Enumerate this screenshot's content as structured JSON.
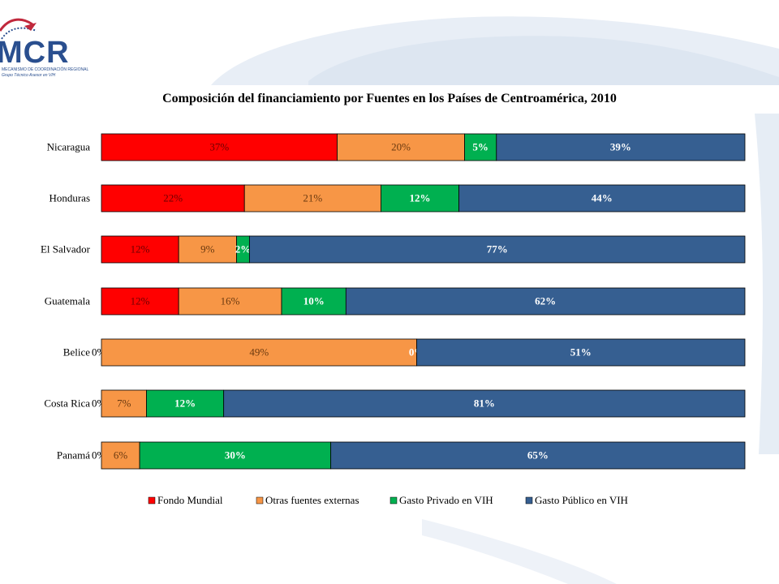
{
  "logo": {
    "text": "MCR",
    "subtitle_line1": "MECANISMO DE COORDINACIÓN REGIONAL",
    "subtitle_line2": "Grupo Técnico Asesor en VIH"
  },
  "chart_data": {
    "type": "bar",
    "orientation": "horizontal",
    "stacked": true,
    "normalized": true,
    "title": "Composición del financiamiento por Fuentes en los Países de Centroamérica, 2010",
    "categories": [
      "Nicaragua",
      "Honduras",
      "El Salvador",
      "Guatemala",
      "Belice",
      "Costa Rica",
      "Panamá"
    ],
    "series": [
      {
        "name": "Fondo Mundial",
        "color": "#ff0000",
        "values": [
          37,
          22,
          12,
          12,
          0,
          0,
          0
        ],
        "labels": [
          "37%",
          "22%",
          "12%",
          "12%",
          "0%",
          "0%",
          "0%"
        ]
      },
      {
        "name": "Otras fuentes externas",
        "color": "#f79646",
        "values": [
          20,
          21,
          9,
          16,
          49,
          7,
          6
        ],
        "labels": [
          "20%",
          "21%",
          "9%",
          "16%",
          "49%",
          "7%",
          "6%"
        ]
      },
      {
        "name": "Gasto Privado en VIH",
        "color": "#00b050",
        "values": [
          5,
          12,
          2,
          10,
          0,
          12,
          30
        ],
        "labels": [
          "5%",
          "12%",
          "2%",
          "10%",
          "0%",
          "12%",
          "30%"
        ]
      },
      {
        "name": "Gasto Público en VIH",
        "color": "#365f91",
        "values": [
          39,
          44,
          77,
          62,
          51,
          81,
          65
        ],
        "labels": [
          "39%",
          "44%",
          "77%",
          "62%",
          "51%",
          "81%",
          "65%"
        ]
      }
    ],
    "legend_position": "bottom",
    "grid": false
  }
}
